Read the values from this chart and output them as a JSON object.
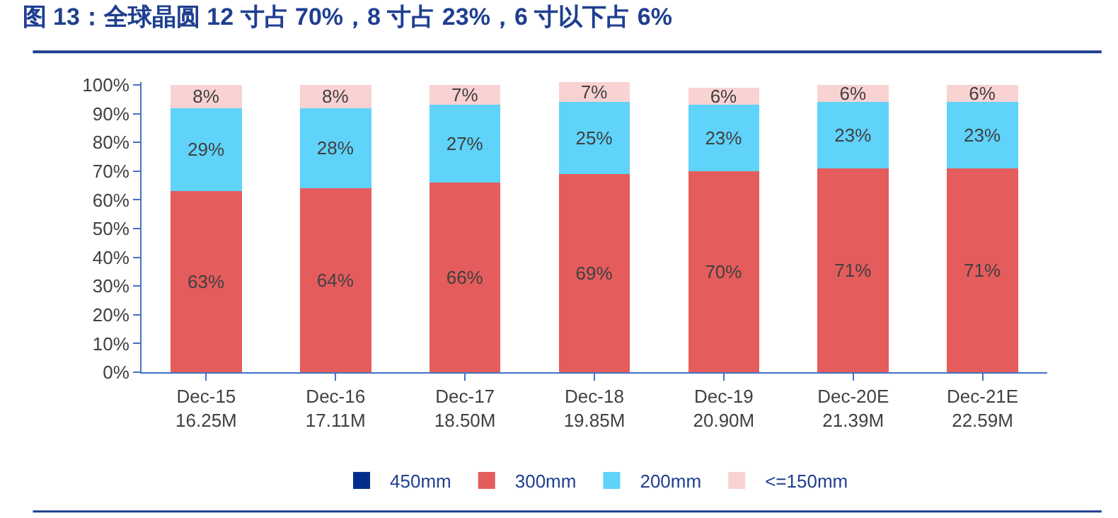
{
  "chart_data": {
    "type": "bar",
    "stacked": true,
    "title": "图 13：全球晶圆 12 寸占 70%，8 寸占 23%，6 寸以下占 6%",
    "categories": [
      "Dec-15\n16.25M",
      "Dec-16\n17.11M",
      "Dec-17\n18.50M",
      "Dec-18\n19.85M",
      "Dec-19\n20.90M",
      "Dec-20E\n21.39M",
      "Dec-21E\n22.59M"
    ],
    "series": [
      {
        "name": "450mm",
        "color": "#002e8a",
        "values": [
          null,
          null,
          null,
          null,
          null,
          null,
          null
        ]
      },
      {
        "name": "300mm",
        "color": "#e55c5c",
        "values": [
          63,
          64,
          66,
          69,
          70,
          71,
          71
        ],
        "value_labels": [
          "63%",
          "64%",
          "66%",
          "69%",
          "70%",
          "71%",
          "71%"
        ]
      },
      {
        "name": "200mm",
        "color": "#5fd3fa",
        "values": [
          29,
          28,
          27,
          25,
          23,
          23,
          23
        ],
        "value_labels": [
          "29%",
          "28%",
          "27%",
          "25%",
          "23%",
          "23%",
          "23%"
        ]
      },
      {
        "name": "<=150mm",
        "color": "#f9d2d2",
        "values": [
          8,
          8,
          7,
          7,
          6,
          6,
          6
        ],
        "value_labels": [
          "8%",
          "8%",
          "7%",
          "7%",
          "6%",
          "6%",
          "6%"
        ]
      }
    ],
    "ylim": [
      0,
      101
    ],
    "yticks": [
      {
        "value": 0,
        "label": "0%"
      },
      {
        "value": 10,
        "label": "10%"
      },
      {
        "value": 20,
        "label": "20%"
      },
      {
        "value": 30,
        "label": "30%"
      },
      {
        "value": 40,
        "label": "40%"
      },
      {
        "value": 50,
        "label": "50%"
      },
      {
        "value": 60,
        "label": "60%"
      },
      {
        "value": 70,
        "label": "70%"
      },
      {
        "value": 80,
        "label": "80%"
      },
      {
        "value": 90,
        "label": "90%"
      },
      {
        "value": 100,
        "label": "100%"
      }
    ],
    "legend": "bottom"
  }
}
